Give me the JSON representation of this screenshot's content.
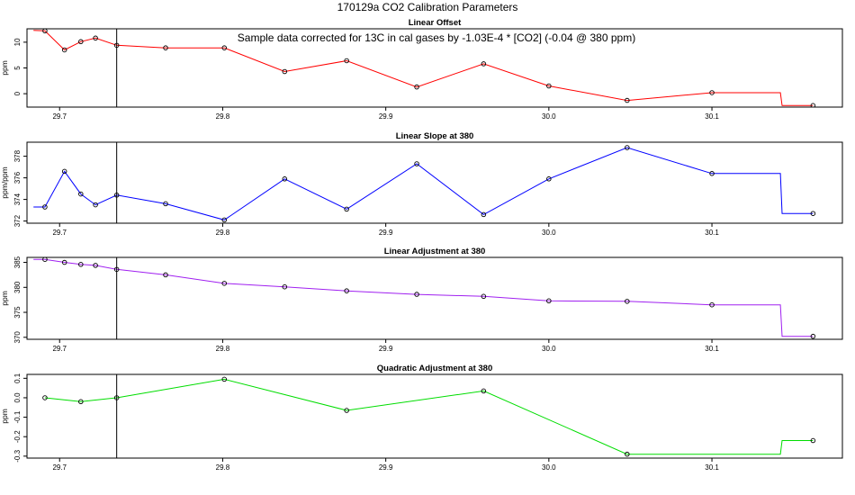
{
  "page_title": "170129a   CO2 Calibration Parameters",
  "annotation": "Sample data corrected for 13C in cal gases by -1.03E-4 * [CO2] (-0.04 @ 380 ppm)",
  "vline_x": 29.735,
  "chart_data": [
    {
      "type": "line",
      "title": "Linear Offset",
      "ylabel": "ppm",
      "color": "#ff0000",
      "xlim": [
        29.68,
        30.18
      ],
      "ylim": [
        -2.6,
        12.6
      ],
      "xticks": [
        29.7,
        29.8,
        29.9,
        30.0,
        30.1
      ],
      "xtick_labels": [
        "29.7",
        "29.8",
        "29.9",
        "30.0",
        "30.1"
      ],
      "yticks": [
        0,
        5,
        10
      ],
      "ytick_labels": [
        "0",
        "5",
        "10"
      ],
      "x": [
        29.684,
        29.691,
        29.703,
        29.713,
        29.722,
        29.735,
        29.765,
        29.801,
        29.838,
        29.876,
        29.919,
        29.96,
        30.0,
        30.048,
        30.1,
        30.142,
        30.143,
        30.162
      ],
      "y": [
        12.3,
        12.2,
        8.5,
        10.1,
        10.8,
        9.4,
        8.9,
        8.9,
        4.3,
        6.4,
        1.3,
        5.8,
        1.5,
        -1.3,
        0.2,
        0.2,
        -2.3,
        -2.3
      ],
      "points": [
        {
          "x": 29.691,
          "y": 12.2
        },
        {
          "x": 29.703,
          "y": 8.5
        },
        {
          "x": 29.713,
          "y": 10.1
        },
        {
          "x": 29.722,
          "y": 10.8
        },
        {
          "x": 29.735,
          "y": 9.4
        },
        {
          "x": 29.765,
          "y": 8.9
        },
        {
          "x": 29.801,
          "y": 8.9
        },
        {
          "x": 29.838,
          "y": 4.3
        },
        {
          "x": 29.876,
          "y": 6.4
        },
        {
          "x": 29.919,
          "y": 1.3
        },
        {
          "x": 29.96,
          "y": 5.8
        },
        {
          "x": 30.0,
          "y": 1.5
        },
        {
          "x": 30.048,
          "y": -1.3
        },
        {
          "x": 30.1,
          "y": 0.2
        },
        {
          "x": 30.162,
          "y": -2.3
        }
      ]
    },
    {
      "type": "line",
      "title": "Linear Slope at 380",
      "ylabel": "ppm/ppm",
      "color": "#0000ff",
      "xlim": [
        29.68,
        30.18
      ],
      "ylim": [
        371.8,
        379.3
      ],
      "xticks": [
        29.7,
        29.8,
        29.9,
        30.0,
        30.1
      ],
      "xtick_labels": [
        "29.7",
        "29.8",
        "29.9",
        "30.0",
        "30.1"
      ],
      "yticks": [
        372,
        374,
        376,
        378
      ],
      "ytick_labels": [
        "372",
        "374",
        "376",
        "378"
      ],
      "x": [
        29.684,
        29.691,
        29.703,
        29.713,
        29.722,
        29.735,
        29.765,
        29.801,
        29.838,
        29.876,
        29.919,
        29.96,
        30.0,
        30.048,
        30.1,
        30.142,
        30.143,
        30.162
      ],
      "y": [
        373.3,
        373.3,
        376.6,
        374.5,
        373.5,
        374.4,
        373.6,
        372.1,
        375.9,
        373.1,
        377.3,
        372.6,
        375.9,
        378.8,
        376.4,
        376.4,
        372.7,
        372.7
      ],
      "points": [
        {
          "x": 29.691,
          "y": 373.3
        },
        {
          "x": 29.703,
          "y": 376.6
        },
        {
          "x": 29.713,
          "y": 374.5
        },
        {
          "x": 29.722,
          "y": 373.5
        },
        {
          "x": 29.735,
          "y": 374.4
        },
        {
          "x": 29.765,
          "y": 373.6
        },
        {
          "x": 29.801,
          "y": 372.1
        },
        {
          "x": 29.838,
          "y": 375.9
        },
        {
          "x": 29.876,
          "y": 373.1
        },
        {
          "x": 29.919,
          "y": 377.3
        },
        {
          "x": 29.96,
          "y": 372.6
        },
        {
          "x": 30.0,
          "y": 375.9
        },
        {
          "x": 30.048,
          "y": 378.8
        },
        {
          "x": 30.1,
          "y": 376.4
        },
        {
          "x": 30.162,
          "y": 372.7
        }
      ]
    },
    {
      "type": "line",
      "title": "Linear Adjustment at 380",
      "ylabel": "ppm",
      "color": "#a020f0",
      "xlim": [
        29.68,
        30.18
      ],
      "ylim": [
        369.6,
        386.0
      ],
      "xticks": [
        29.7,
        29.8,
        29.9,
        30.0,
        30.1
      ],
      "xtick_labels": [
        "29.7",
        "29.8",
        "29.9",
        "30.0",
        "30.1"
      ],
      "yticks": [
        370,
        375,
        380,
        385
      ],
      "ytick_labels": [
        "370",
        "375",
        "380",
        "385"
      ],
      "x": [
        29.684,
        29.691,
        29.703,
        29.713,
        29.722,
        29.735,
        29.765,
        29.801,
        29.838,
        29.876,
        29.919,
        29.96,
        30.0,
        30.048,
        30.1,
        30.142,
        30.143,
        30.162
      ],
      "y": [
        385.6,
        385.6,
        385.0,
        384.6,
        384.4,
        383.6,
        382.5,
        380.8,
        380.1,
        379.3,
        378.6,
        378.2,
        377.3,
        377.2,
        376.5,
        376.5,
        370.2,
        370.2
      ],
      "points": [
        {
          "x": 29.691,
          "y": 385.6
        },
        {
          "x": 29.703,
          "y": 385.0
        },
        {
          "x": 29.713,
          "y": 384.6
        },
        {
          "x": 29.722,
          "y": 384.4
        },
        {
          "x": 29.735,
          "y": 383.6
        },
        {
          "x": 29.765,
          "y": 382.5
        },
        {
          "x": 29.801,
          "y": 380.8
        },
        {
          "x": 29.838,
          "y": 380.1
        },
        {
          "x": 29.876,
          "y": 379.3
        },
        {
          "x": 29.919,
          "y": 378.6
        },
        {
          "x": 29.96,
          "y": 378.2
        },
        {
          "x": 30.0,
          "y": 377.3
        },
        {
          "x": 30.048,
          "y": 377.2
        },
        {
          "x": 30.1,
          "y": 376.5
        },
        {
          "x": 30.162,
          "y": 370.2
        }
      ]
    },
    {
      "type": "line",
      "title": "Quadratic Adjustment at 380",
      "ylabel": "ppm",
      "color": "#00dd00",
      "xlim": [
        29.68,
        30.18
      ],
      "ylim": [
        -0.31,
        0.12
      ],
      "xticks": [
        29.7,
        29.8,
        29.9,
        30.0,
        30.1
      ],
      "xtick_labels": [
        "29.7",
        "29.8",
        "29.9",
        "30.0",
        "30.1"
      ],
      "yticks": [
        -0.3,
        -0.2,
        -0.1,
        0.0,
        0.1
      ],
      "ytick_labels": [
        "-0.3",
        "-0.2",
        "-0.1",
        "0.0",
        "0.1"
      ],
      "x": [
        29.691,
        29.713,
        29.735,
        29.801,
        29.876,
        29.96,
        30.048,
        30.142,
        30.143,
        30.162
      ],
      "y": [
        0.0,
        -0.02,
        0.0,
        0.095,
        -0.065,
        0.035,
        -0.29,
        -0.29,
        -0.22,
        -0.22
      ],
      "points": [
        {
          "x": 29.691,
          "y": 0.0
        },
        {
          "x": 29.713,
          "y": -0.02
        },
        {
          "x": 29.735,
          "y": 0.0
        },
        {
          "x": 29.801,
          "y": 0.095
        },
        {
          "x": 29.876,
          "y": -0.065
        },
        {
          "x": 29.96,
          "y": 0.035
        },
        {
          "x": 30.048,
          "y": -0.29
        },
        {
          "x": 30.162,
          "y": -0.22
        }
      ]
    }
  ]
}
